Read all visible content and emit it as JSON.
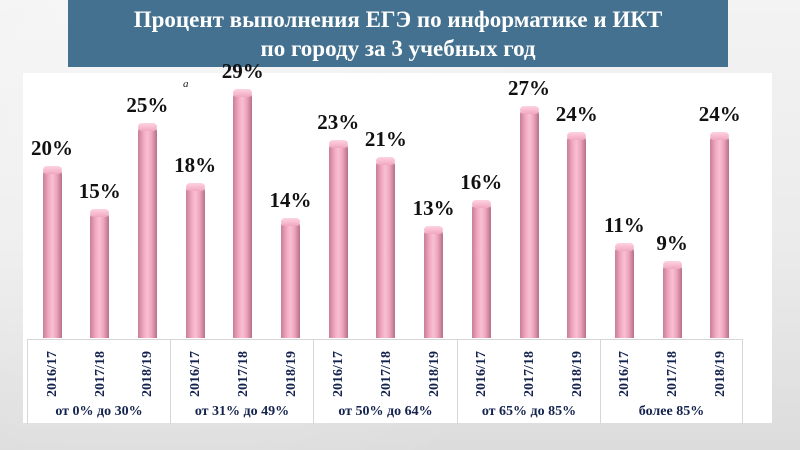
{
  "title": {
    "line1": "Процент выполнения ЕГЭ по информатике и ИКТ",
    "line2": "по городу за 3 учебных год"
  },
  "stray_mark": "a",
  "colors": {
    "title_bg": "#44718f",
    "title_text": "#ffffff",
    "bar": "#f2aac1",
    "axis_text": "#14234e"
  },
  "groups": [
    {
      "label": "от 0% до 30%",
      "years": [
        "2016/17",
        "2017/18",
        "2018/19"
      ],
      "values": [
        "20%",
        "15%",
        "25%"
      ]
    },
    {
      "label": "от 31% до 49%",
      "years": [
        "2016/17",
        "2017/18",
        "2018/19"
      ],
      "values": [
        "18%",
        "29%",
        "14%"
      ]
    },
    {
      "label": "от 50% до 64%",
      "years": [
        "2016/17",
        "2017/18",
        "2018/19"
      ],
      "values": [
        "23%",
        "21%",
        "13%"
      ]
    },
    {
      "label": "от 65% до 85%",
      "years": [
        "2016/17",
        "2017/18",
        "2018/19"
      ],
      "values": [
        "16%",
        "27%",
        "24%"
      ]
    },
    {
      "label": "более 85%",
      "years": [
        "2016/17",
        "2017/18",
        "2018/19"
      ],
      "values": [
        "11%",
        "9%",
        "24%"
      ]
    }
  ],
  "chart_data": {
    "type": "bar",
    "title": "Процент выполнения ЕГЭ по информатике и ИКТ по городу за 3 учебных год",
    "xlabel": "",
    "ylabel": "",
    "categories": [
      "от 0% до 30%",
      "от 31% до 49%",
      "от 50% до 64%",
      "от 65% до 85%",
      "более 85%"
    ],
    "series": [
      {
        "name": "2016/17",
        "values": [
          20,
          18,
          23,
          16,
          11
        ]
      },
      {
        "name": "2017/18",
        "values": [
          15,
          29,
          21,
          27,
          9
        ]
      },
      {
        "name": "2018/19",
        "values": [
          25,
          14,
          13,
          24,
          24
        ]
      }
    ],
    "value_format": "%",
    "ylim": [
      0,
      30
    ],
    "grid": false,
    "legend": "none (years shown as rotated category sub-labels)",
    "data_labels": true
  }
}
